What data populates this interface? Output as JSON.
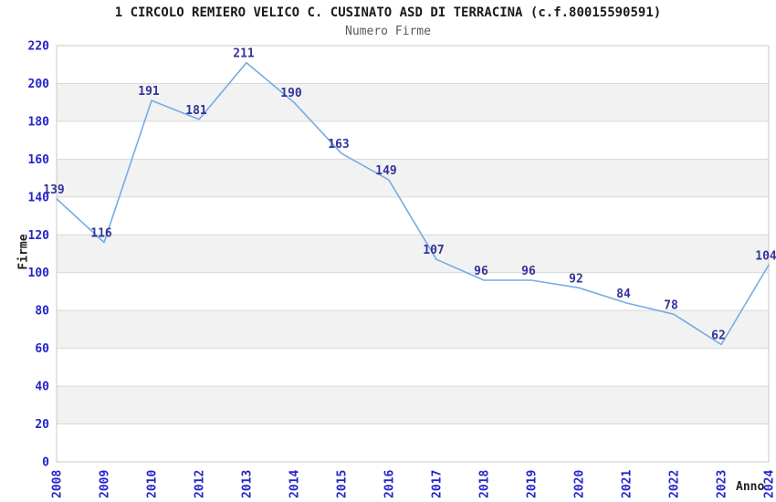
{
  "chart_data": {
    "type": "line",
    "title": "1 CIRCOLO REMIERO VELICO C. CUSINATO ASD DI TERRACINA (c.f.80015590591)",
    "subtitle": "Numero Firme",
    "xlabel": "Anno",
    "ylabel": "Firme",
    "categories": [
      "2008",
      "2009",
      "2010",
      "2012",
      "2013",
      "2014",
      "2015",
      "2016",
      "2017",
      "2018",
      "2019",
      "2020",
      "2021",
      "2022",
      "2023",
      "2024"
    ],
    "values": [
      139,
      116,
      191,
      181,
      211,
      190,
      163,
      149,
      107,
      96,
      96,
      92,
      84,
      78,
      62,
      104
    ],
    "ylim": [
      0,
      220
    ],
    "ytick_step": 20,
    "grid": true,
    "alternate_band": true,
    "legend_position": "none",
    "data_labels_visible": true,
    "colors": {
      "line": "#74ace4",
      "data_label": "#333399",
      "tick_label": "#2424cc",
      "band": "#f2f2f2",
      "gridline": "#d8d8d8",
      "plot_border": "#c8c8c8",
      "title": "#1a1a1a",
      "subtitle": "#5a5a5a",
      "axis_title": "#1f1f1f",
      "background": "#ffffff"
    }
  }
}
